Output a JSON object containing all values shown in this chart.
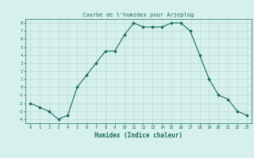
{
  "x": [
    0,
    1,
    2,
    3,
    4,
    5,
    6,
    7,
    8,
    9,
    10,
    11,
    12,
    13,
    14,
    15,
    16,
    17,
    18,
    19,
    20,
    21,
    22,
    23
  ],
  "y": [
    -2,
    -2.5,
    -3,
    -4,
    -3.5,
    0,
    1.5,
    3,
    4.5,
    4.5,
    6.5,
    8,
    7.5,
    7.5,
    7.5,
    8,
    8,
    7,
    4,
    1,
    -1,
    -1.5,
    -3,
    -3.5
  ],
  "title": "Courbe de l'humidex pour Arjeplog",
  "xlabel": "Humidex (Indice chaleur)",
  "xlim": [
    -0.5,
    23.5
  ],
  "ylim": [
    -4.5,
    8.5
  ],
  "yticks": [
    -4,
    -3,
    -2,
    -1,
    0,
    1,
    2,
    3,
    4,
    5,
    6,
    7,
    8
  ],
  "xticks": [
    0,
    1,
    2,
    3,
    4,
    5,
    6,
    7,
    8,
    9,
    10,
    11,
    12,
    13,
    14,
    15,
    16,
    17,
    18,
    19,
    20,
    21,
    22,
    23
  ],
  "line_color": "#1a6b5a",
  "marker_color": "#1a6b5a",
  "bg_color": "#d6f0ee",
  "grid_color": "#b8dbd8",
  "title_color": "#1a6b5a",
  "xlabel_color": "#1a6b5a",
  "tick_color": "#1a6b5a",
  "spine_color": "#1a6b5a"
}
